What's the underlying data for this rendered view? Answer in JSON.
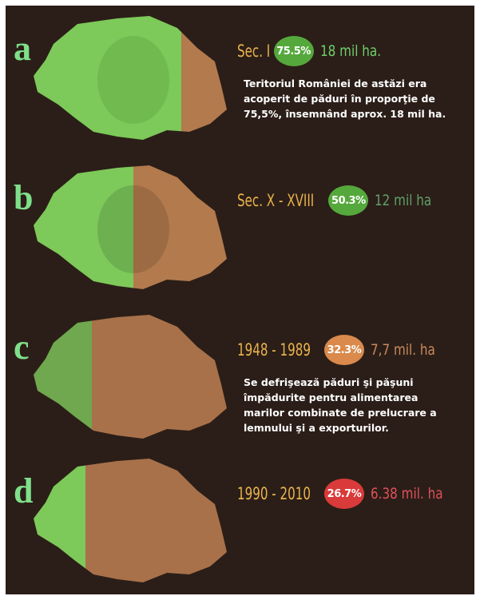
{
  "panels": [
    {
      "letter": "a",
      "period": "Sec. I",
      "percent": "75.5%",
      "area": "18 mil ha.",
      "description": "Teritoriul României de astăzi era acoperit de păduri în proporţie de 75,5%, însemnând aprox. 18 mil ha."
    },
    {
      "letter": "b",
      "period": "Sec. X - XVIII",
      "percent": "50.3%",
      "area": "12 mil ha"
    },
    {
      "letter": "c",
      "period": "1948 - 1989",
      "percent": "32.3%",
      "area": "7,7 mil. ha",
      "description": "Se defrişează păduri şi păşuni împădurite pentru alimentarea marilor combinate de prelucrare a lemnului şi a exporturilor."
    },
    {
      "letter": "d",
      "period": "1990 - 2010",
      "percent": "26.7%",
      "area": "6.38 mil. ha"
    }
  ]
}
